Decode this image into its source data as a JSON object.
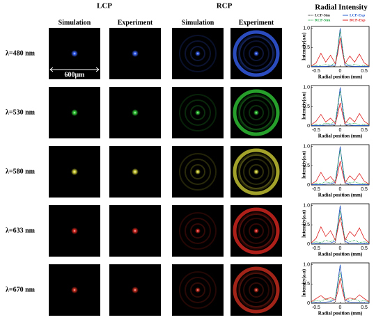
{
  "headers": {
    "lcp": "LCP",
    "rcp": "RCP",
    "radial": "Radial Intensity"
  },
  "columns": [
    "Simulation",
    "Experiment",
    "Simulation",
    "Experiment"
  ],
  "scale_bar": "600μm",
  "rows": [
    {
      "label": "λ=480 nm",
      "color": "#3a66ff"
    },
    {
      "label": "λ=530 nm",
      "color": "#34d43a"
    },
    {
      "label": "λ=580 nm",
      "color": "#d8d838"
    },
    {
      "label": "λ=633 nm",
      "color": "#e82a22"
    },
    {
      "label": "λ=670 nm",
      "color": "#d83020"
    }
  ],
  "chart_data": [
    {
      "type": "line",
      "xlabel": "Radial position (mm)",
      "ylabel": "Intensity(a.u)",
      "legend": true,
      "x": [
        -0.6,
        -0.5,
        -0.4,
        -0.3,
        -0.2,
        -0.1,
        -0.05,
        0,
        0.05,
        0.1,
        0.2,
        0.3,
        0.4,
        0.5,
        0.6
      ],
      "xlim": [
        -0.6,
        0.6
      ],
      "ylim": [
        0,
        1.05
      ],
      "xticks": [
        -0.5,
        0,
        0.5
      ],
      "yticks": [
        0,
        0.5,
        {
          "value": 1,
          "label": "1.0"
        }
      ],
      "series": [
        {
          "name": "LCP-Sim",
          "color": "#222222",
          "style": "dotted",
          "values": [
            0,
            0,
            0,
            0,
            0,
            0.02,
            0.4,
            1,
            0.4,
            0.02,
            0,
            0,
            0,
            0,
            0
          ]
        },
        {
          "name": "LCP-Exp",
          "color": "#2a5fd0",
          "style": "solid",
          "values": [
            0.01,
            0.01,
            0.01,
            0.01,
            0.02,
            0.05,
            0.45,
            1,
            0.42,
            0.05,
            0.02,
            0.01,
            0.01,
            0.01,
            0.01
          ]
        },
        {
          "name": "RCP-Sim",
          "color": "#20a848",
          "style": "dotted",
          "values": [
            0.02,
            0.04,
            0.03,
            0.06,
            0.04,
            0.1,
            0.5,
            0.95,
            0.5,
            0.1,
            0.04,
            0.06,
            0.03,
            0.04,
            0.02
          ]
        },
        {
          "name": "RCP-Exp",
          "color": "#e02020",
          "style": "solid",
          "values": [
            0.02,
            0.1,
            0.35,
            0.12,
            0.3,
            0.08,
            0.35,
            0.75,
            0.35,
            0.08,
            0.28,
            0.12,
            0.33,
            0.1,
            0.02
          ]
        }
      ]
    },
    {
      "type": "line",
      "xlabel": "Radial position (mm)",
      "ylabel": "Intensity(a.u)",
      "legend": false,
      "x": [
        -0.6,
        -0.5,
        -0.4,
        -0.3,
        -0.2,
        -0.1,
        -0.05,
        0,
        0.05,
        0.1,
        0.2,
        0.3,
        0.4,
        0.5,
        0.6
      ],
      "xlim": [
        -0.6,
        0.6
      ],
      "ylim": [
        0,
        1.05
      ],
      "xticks": [
        -0.5,
        0,
        0.5
      ],
      "yticks": [
        0,
        0.5,
        {
          "value": 1,
          "label": "1.0"
        }
      ],
      "series": [
        {
          "name": "LCP-Sim",
          "color": "#222222",
          "style": "dotted",
          "values": [
            0,
            0,
            0,
            0,
            0,
            0.02,
            0.42,
            1,
            0.42,
            0.02,
            0,
            0,
            0,
            0,
            0
          ]
        },
        {
          "name": "LCP-Exp",
          "color": "#2a5fd0",
          "style": "solid",
          "values": [
            0.01,
            0.01,
            0.01,
            0.02,
            0.02,
            0.06,
            0.5,
            1,
            0.46,
            0.05,
            0.02,
            0.01,
            0.01,
            0.01,
            0.01
          ]
        },
        {
          "name": "RCP-Sim",
          "color": "#20a848",
          "style": "dotted",
          "values": [
            0.02,
            0.05,
            0.03,
            0.07,
            0.05,
            0.12,
            0.55,
            0.9,
            0.55,
            0.12,
            0.05,
            0.07,
            0.03,
            0.05,
            0.02
          ]
        },
        {
          "name": "RCP-Exp",
          "color": "#e02020",
          "style": "solid",
          "values": [
            0.03,
            0.12,
            0.3,
            0.1,
            0.2,
            0.06,
            0.3,
            0.6,
            0.3,
            0.06,
            0.22,
            0.1,
            0.32,
            0.12,
            0.03
          ]
        }
      ]
    },
    {
      "type": "line",
      "xlabel": "Radial position (mm)",
      "ylabel": "Intensity(a.u)",
      "legend": false,
      "x": [
        -0.6,
        -0.5,
        -0.4,
        -0.3,
        -0.2,
        -0.1,
        -0.05,
        0,
        0.05,
        0.1,
        0.2,
        0.3,
        0.4,
        0.5,
        0.6
      ],
      "xlim": [
        -0.6,
        0.6
      ],
      "ylim": [
        0,
        1.05
      ],
      "xticks": [
        -0.5,
        0,
        0.5
      ],
      "yticks": [
        0,
        0.5,
        {
          "value": 1,
          "label": "1.0"
        }
      ],
      "series": [
        {
          "name": "LCP-Sim",
          "color": "#222222",
          "style": "dotted",
          "values": [
            0,
            0,
            0,
            0,
            0,
            0.03,
            0.45,
            1,
            0.45,
            0.03,
            0,
            0,
            0,
            0,
            0
          ]
        },
        {
          "name": "LCP-Exp",
          "color": "#2a5fd0",
          "style": "solid",
          "values": [
            0.01,
            0.01,
            0.01,
            0.02,
            0.03,
            0.07,
            0.5,
            1,
            0.48,
            0.06,
            0.02,
            0.01,
            0.01,
            0.01,
            0.01
          ]
        },
        {
          "name": "RCP-Sim",
          "color": "#20a848",
          "style": "dotted",
          "values": [
            0.02,
            0.05,
            0.04,
            0.08,
            0.05,
            0.12,
            0.55,
            0.92,
            0.55,
            0.12,
            0.05,
            0.08,
            0.04,
            0.05,
            0.02
          ]
        },
        {
          "name": "RCP-Exp",
          "color": "#e02020",
          "style": "solid",
          "values": [
            0.02,
            0.1,
            0.33,
            0.12,
            0.22,
            0.06,
            0.3,
            0.62,
            0.3,
            0.06,
            0.24,
            0.12,
            0.3,
            0.1,
            0.02
          ]
        }
      ]
    },
    {
      "type": "line",
      "xlabel": "Radial position (mm)",
      "ylabel": "Intensity(a.u)",
      "legend": false,
      "x": [
        -0.6,
        -0.5,
        -0.4,
        -0.3,
        -0.2,
        -0.1,
        -0.05,
        0,
        0.05,
        0.1,
        0.2,
        0.3,
        0.4,
        0.5,
        0.6
      ],
      "xlim": [
        -0.6,
        0.6
      ],
      "ylim": [
        0,
        1.05
      ],
      "xticks": [
        -0.5,
        0,
        0.5
      ],
      "yticks": [
        0,
        0.5,
        {
          "value": 1,
          "label": "1.0"
        }
      ],
      "series": [
        {
          "name": "LCP-Sim",
          "color": "#222222",
          "style": "dotted",
          "values": [
            0,
            0,
            0,
            0,
            0,
            0.03,
            0.45,
            1,
            0.45,
            0.03,
            0,
            0,
            0,
            0,
            0
          ]
        },
        {
          "name": "LCP-Exp",
          "color": "#2a5fd0",
          "style": "solid",
          "values": [
            0.01,
            0.01,
            0.02,
            0.02,
            0.03,
            0.08,
            0.52,
            1,
            0.5,
            0.07,
            0.02,
            0.02,
            0.01,
            0.01,
            0.01
          ]
        },
        {
          "name": "RCP-Sim",
          "color": "#20a848",
          "style": "dotted",
          "values": [
            0.03,
            0.06,
            0.04,
            0.1,
            0.06,
            0.14,
            0.5,
            0.85,
            0.5,
            0.14,
            0.06,
            0.1,
            0.04,
            0.06,
            0.03
          ]
        },
        {
          "name": "RCP-Exp",
          "color": "#e02020",
          "style": "solid",
          "values": [
            0.03,
            0.15,
            0.45,
            0.2,
            0.35,
            0.1,
            0.38,
            0.7,
            0.38,
            0.1,
            0.33,
            0.2,
            0.42,
            0.15,
            0.03
          ]
        }
      ]
    },
    {
      "type": "line",
      "xlabel": "Radial position (mm)",
      "ylabel": "Intensity(a.u)",
      "legend": false,
      "x": [
        -0.6,
        -0.5,
        -0.4,
        -0.3,
        -0.2,
        -0.1,
        -0.05,
        0,
        0.05,
        0.1,
        0.2,
        0.3,
        0.4,
        0.5,
        0.6
      ],
      "xlim": [
        -0.6,
        0.6
      ],
      "ylim": [
        0,
        1.05
      ],
      "xticks": [
        -0.5,
        0,
        0.5
      ],
      "yticks": [
        0,
        0.5,
        {
          "value": 1,
          "label": "1.0"
        }
      ],
      "series": [
        {
          "name": "LCP-Sim",
          "color": "#222222",
          "style": "dotted",
          "values": [
            0,
            0,
            0,
            0,
            0,
            0.03,
            0.48,
            1,
            0.48,
            0.03,
            0,
            0,
            0,
            0,
            0
          ]
        },
        {
          "name": "LCP-Exp",
          "color": "#2a5fd0",
          "style": "solid",
          "values": [
            0.01,
            0.02,
            0.02,
            0.03,
            0.04,
            0.1,
            0.55,
            1,
            0.52,
            0.08,
            0.03,
            0.02,
            0.02,
            0.01,
            0.01
          ]
        },
        {
          "name": "RCP-Sim",
          "color": "#20a848",
          "style": "dotted",
          "values": [
            0.03,
            0.07,
            0.05,
            0.12,
            0.07,
            0.15,
            0.5,
            0.8,
            0.5,
            0.15,
            0.07,
            0.12,
            0.05,
            0.07,
            0.03
          ]
        },
        {
          "name": "RCP-Exp",
          "color": "#e02020",
          "style": "solid",
          "values": [
            0.04,
            0.12,
            0.2,
            0.1,
            0.15,
            0.08,
            0.3,
            0.65,
            0.3,
            0.08,
            0.14,
            0.1,
            0.22,
            0.12,
            0.04
          ]
        }
      ]
    }
  ]
}
